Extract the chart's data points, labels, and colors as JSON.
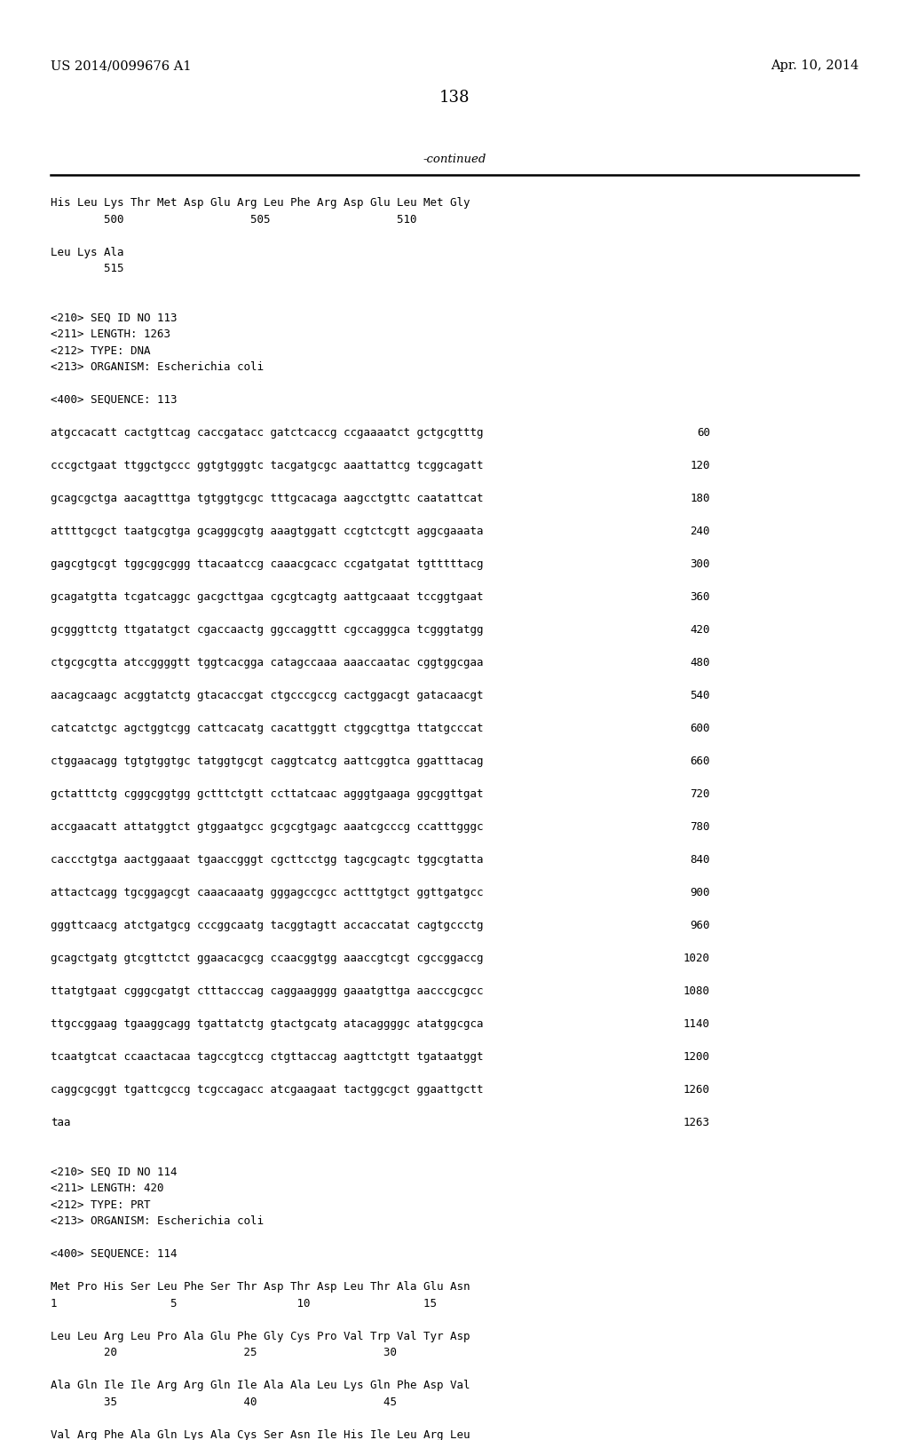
{
  "header_left": "US 2014/0099676 A1",
  "header_right": "Apr. 10, 2014",
  "page_number": "138",
  "continued_label": "-continued",
  "background_color": "#ffffff",
  "text_color": "#000000",
  "lines": [
    {
      "text": "His Leu Lys Thr Met Asp Glu Arg Leu Phe Arg Asp Glu Leu Met Gly",
      "mono": true,
      "num": null,
      "blank_after": false
    },
    {
      "text": "        500                   505                   510",
      "mono": true,
      "num": null,
      "blank_after": true
    },
    {
      "text": "Leu Lys Ala",
      "mono": true,
      "num": null,
      "blank_after": false
    },
    {
      "text": "        515",
      "mono": true,
      "num": null,
      "blank_after": true
    },
    {
      "text": "",
      "mono": false,
      "num": null,
      "blank_after": false
    },
    {
      "text": "<210> SEQ ID NO 113",
      "mono": true,
      "num": null,
      "blank_after": false
    },
    {
      "text": "<211> LENGTH: 1263",
      "mono": true,
      "num": null,
      "blank_after": false
    },
    {
      "text": "<212> TYPE: DNA",
      "mono": true,
      "num": null,
      "blank_after": false
    },
    {
      "text": "<213> ORGANISM: Escherichia coli",
      "mono": true,
      "num": null,
      "blank_after": true
    },
    {
      "text": "<400> SEQUENCE: 113",
      "mono": true,
      "num": null,
      "blank_after": true
    },
    {
      "text": "atgccacatt cactgttcag caccgatacc gatctcaccg ccgaaaatct gctgcgtttg",
      "mono": true,
      "num": "60",
      "blank_after": true
    },
    {
      "text": "cccgctgaat ttggctgccc ggtgtgggtc tacgatgcgc aaattattcg tcggcagatt",
      "mono": true,
      "num": "120",
      "blank_after": true
    },
    {
      "text": "gcagcgctga aacagtttga tgtggtgcgc tttgcacaga aagcctgttc caatattcat",
      "mono": true,
      "num": "180",
      "blank_after": true
    },
    {
      "text": "attttgcgct taatgcgtga gcagggcgtg aaagtggatt ccgtctcgtt aggcgaaata",
      "mono": true,
      "num": "240",
      "blank_after": true
    },
    {
      "text": "gagcgtgcgt tggcggcggg ttacaatccg caaacgcacc ccgatgatat tgtttttacg",
      "mono": true,
      "num": "300",
      "blank_after": true
    },
    {
      "text": "gcagatgtta tcgatcaggc gacgcttgaa cgcgtcagtg aattgcaaat tccggtgaat",
      "mono": true,
      "num": "360",
      "blank_after": true
    },
    {
      "text": "gcgggttctg ttgatatgct cgaccaactg ggccaggttt cgccagggca tcgggtatgg",
      "mono": true,
      "num": "420",
      "blank_after": true
    },
    {
      "text": "ctgcgcgtta atccggggtt tggtcacgga catagccaaa aaaccaatac cggtggcgaa",
      "mono": true,
      "num": "480",
      "blank_after": true
    },
    {
      "text": "aacagcaagc acggtatctg gtacaccgat ctgcccgccg cactggacgt gatacaacgt",
      "mono": true,
      "num": "540",
      "blank_after": true
    },
    {
      "text": "catcatctgc agctggtcgg cattcacatg cacattggtt ctggcgttga ttatgcccat",
      "mono": true,
      "num": "600",
      "blank_after": true
    },
    {
      "text": "ctggaacagg tgtgtggtgc tatggtgcgt caggtcatcg aattcggtca ggatttacag",
      "mono": true,
      "num": "660",
      "blank_after": true
    },
    {
      "text": "gctatttctg cgggcggtgg gctttctgtt ccttatcaac agggtgaaga ggcggttgat",
      "mono": true,
      "num": "720",
      "blank_after": true
    },
    {
      "text": "accgaacatt attatggtct gtggaatgcc gcgcgtgagc aaatcgcccg ccatttgggc",
      "mono": true,
      "num": "780",
      "blank_after": true
    },
    {
      "text": "caccctgtga aactggaaat tgaaccgggt cgcttcctgg tagcgcagtc tggcgtatta",
      "mono": true,
      "num": "840",
      "blank_after": true
    },
    {
      "text": "attactcagg tgcggagcgt caaacaaatg gggagccgcc actttgtgct ggttgatgcc",
      "mono": true,
      "num": "900",
      "blank_after": true
    },
    {
      "text": "gggttcaacg atctgatgcg cccggcaatg tacggtagtt accaccatat cagtgccctg",
      "mono": true,
      "num": "960",
      "blank_after": true
    },
    {
      "text": "gcagctgatg gtcgttctct ggaacacgcg ccaacggtgg aaaccgtcgt cgccggaccg",
      "mono": true,
      "num": "1020",
      "blank_after": true
    },
    {
      "text": "ttatgtgaat cgggcgatgt ctttacccag caggaagggg gaaatgttga aacccgcgcc",
      "mono": true,
      "num": "1080",
      "blank_after": true
    },
    {
      "text": "ttgccggaag tgaaggcagg tgattatctg gtactgcatg atacaggggc atatggcgca",
      "mono": true,
      "num": "1140",
      "blank_after": true
    },
    {
      "text": "tcaatgtcat ccaactacaa tagccgtccg ctgttaccag aagttctgtt tgataatggt",
      "mono": true,
      "num": "1200",
      "blank_after": true
    },
    {
      "text": "caggcgcggt tgattcgccg tcgccagacc atcgaagaat tactggcgct ggaattgctt",
      "mono": true,
      "num": "1260",
      "blank_after": true
    },
    {
      "text": "taa",
      "mono": true,
      "num": "1263",
      "blank_after": true
    },
    {
      "text": "",
      "mono": false,
      "num": null,
      "blank_after": false
    },
    {
      "text": "<210> SEQ ID NO 114",
      "mono": true,
      "num": null,
      "blank_after": false
    },
    {
      "text": "<211> LENGTH: 420",
      "mono": true,
      "num": null,
      "blank_after": false
    },
    {
      "text": "<212> TYPE: PRT",
      "mono": true,
      "num": null,
      "blank_after": false
    },
    {
      "text": "<213> ORGANISM: Escherichia coli",
      "mono": true,
      "num": null,
      "blank_after": true
    },
    {
      "text": "<400> SEQUENCE: 114",
      "mono": true,
      "num": null,
      "blank_after": true
    },
    {
      "text": "Met Pro His Ser Leu Phe Ser Thr Asp Thr Asp Leu Thr Ala Glu Asn",
      "mono": true,
      "num": null,
      "blank_after": false
    },
    {
      "text": "1                 5                  10                 15",
      "mono": true,
      "num": null,
      "blank_after": true
    },
    {
      "text": "Leu Leu Arg Leu Pro Ala Glu Phe Gly Cys Pro Val Trp Val Tyr Asp",
      "mono": true,
      "num": null,
      "blank_after": false
    },
    {
      "text": "        20                   25                   30",
      "mono": true,
      "num": null,
      "blank_after": true
    },
    {
      "text": "Ala Gln Ile Ile Arg Arg Gln Ile Ala Ala Leu Lys Gln Phe Asp Val",
      "mono": true,
      "num": null,
      "blank_after": false
    },
    {
      "text": "        35                   40                   45",
      "mono": true,
      "num": null,
      "blank_after": true
    },
    {
      "text": "Val Arg Phe Ala Gln Lys Ala Cys Ser Asn Ile His Ile Leu Arg Leu",
      "mono": true,
      "num": null,
      "blank_after": false
    }
  ]
}
